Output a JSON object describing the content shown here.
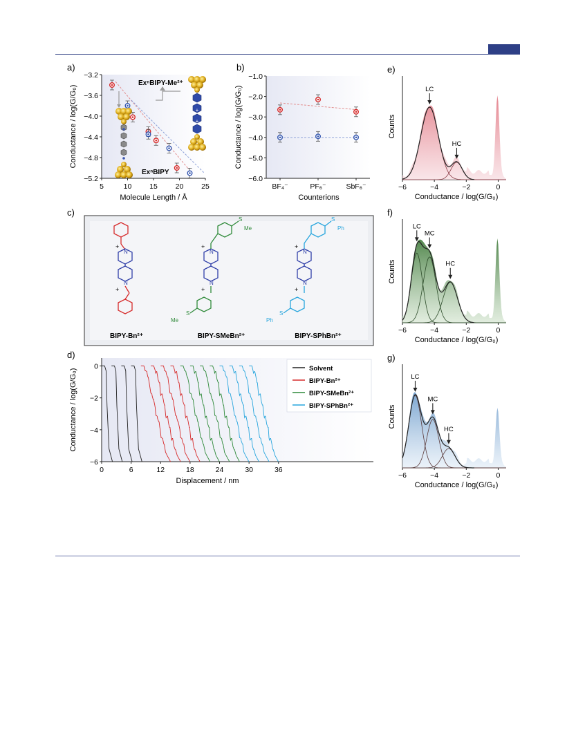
{
  "panels": {
    "a": {
      "label": "a)",
      "ylabel": "Conductance / log(G/G₀)",
      "xlabel": "Molecule Length / Å",
      "xticks": [
        "5",
        "10",
        "15",
        "20",
        "25"
      ],
      "yticks": [
        "−3.2",
        "−3.6",
        "−4.0",
        "−4.4",
        "−4.8",
        "−5.2"
      ],
      "annot_top": "ExⁿBIPY-Me²⁺",
      "annot_bottom": "ExⁿBIPY"
    },
    "b": {
      "label": "b)",
      "ylabel": "Conductance / log(G/G₀)",
      "xlabel": "Counterions",
      "xticks": [
        "BF₄⁻",
        "PF₆⁻",
        "SbF₆⁻"
      ],
      "yticks": [
        "−1.0",
        "−2.0",
        "−3.0",
        "−4.0",
        "−5.0",
        "−6.0"
      ]
    },
    "c": {
      "label": "c)",
      "mol1": "BIPY-Bn²⁺",
      "mol2": "BIPY-SMeBn²⁺",
      "mol3": "BIPY-SPhBn²⁺",
      "sub_me": "Me",
      "sub_ph": "Ph",
      "s": "S",
      "n": "N",
      "plus": "+"
    },
    "d": {
      "label": "d)",
      "ylabel": "Conductance / log(G/G₀)",
      "xlabel": "Displacement / nm",
      "xticks": [
        "0",
        "6",
        "12",
        "18",
        "24",
        "30",
        "36"
      ],
      "yticks": [
        "0",
        "−2",
        "−4",
        "−6"
      ],
      "legend": [
        "Solvent",
        "BIPY-Bn²⁺",
        "BIPY-SMeBn²⁺",
        "BIPY-SPhBn²⁺"
      ]
    },
    "e": {
      "label": "e)",
      "ylabel": "Counts",
      "xlabel": "Conductance / log(G/G₀)",
      "xticks": [
        "−6",
        "−4",
        "−2",
        "0"
      ],
      "peaks": [
        "LC",
        "HC"
      ]
    },
    "f": {
      "label": "f)",
      "ylabel": "Counts",
      "xlabel": "Conductance / log(G/G₀)",
      "xticks": [
        "−6",
        "−4",
        "−2",
        "0"
      ],
      "peaks": [
        "LC",
        "MC",
        "HC"
      ]
    },
    "g": {
      "label": "g)",
      "ylabel": "Counts",
      "xlabel": "Conductance / log(G/G₀)",
      "xticks": [
        "−6",
        "−4",
        "−2",
        "0"
      ],
      "peaks": [
        "LC",
        "MC",
        "HC"
      ]
    }
  },
  "colors": {
    "red": "#d62a2a",
    "blue": "#3557b0",
    "green": "#2f8a3a",
    "cyan": "#27a5dd",
    "black": "#222222",
    "header": "#2e3f86",
    "e_fill": "#e89aa2",
    "f_fill": "#6c9a63",
    "g_fill": "#9dbcdc"
  },
  "chart_data": [
    {
      "type": "scatter",
      "panel": "a",
      "xlabel": "Molecule Length / Å",
      "ylabel": "Conductance / log(G/G₀)",
      "xlim": [
        5,
        25
      ],
      "ylim": [
        -5.2,
        -3.2
      ],
      "series": [
        {
          "x": [
            7,
            11,
            14,
            15.5,
            19.5
          ],
          "y": [
            -3.4,
            -4.02,
            -4.3,
            -4.47,
            -5.0
          ]
        },
        {
          "x": [
            10,
            14,
            18,
            22
          ],
          "y": [
            -3.8,
            -4.35,
            -4.62,
            -5.1
          ]
        }
      ]
    },
    {
      "type": "scatter",
      "panel": "b",
      "xlabel": "Counterions",
      "ylabel": "Conductance / log(G/G₀)",
      "categories": [
        "BF₄⁻",
        "PF₆⁻",
        "SbF₆⁻"
      ],
      "ylim": [
        -6.0,
        -1.0
      ],
      "series": [
        {
          "values": [
            -2.65,
            -2.15,
            -2.75
          ]
        },
        {
          "values": [
            -4.0,
            -3.95,
            -4.0
          ]
        }
      ]
    },
    {
      "type": "line",
      "panel": "d",
      "xlabel": "Displacement / nm",
      "ylabel": "Conductance / log(G/G₀)",
      "xlim": [
        0,
        38
      ],
      "ylim": [
        -6,
        0.5
      ],
      "series": [
        {
          "name": "Solvent",
          "starts": [
            0,
            2,
            4,
            6
          ]
        },
        {
          "name": "BIPY-Bn²⁺",
          "starts": [
            8,
            10,
            12,
            14
          ]
        },
        {
          "name": "BIPY-SMeBn²⁺",
          "starts": [
            16,
            18,
            20,
            22
          ]
        },
        {
          "name": "BIPY-SPhBn²⁺",
          "starts": [
            24,
            26,
            28,
            30
          ]
        }
      ]
    },
    {
      "type": "area",
      "panel": "e",
      "xlabel": "Conductance / log(G/G₀)",
      "ylabel": "Counts",
      "xlim": [
        -6,
        0.5
      ],
      "peaks": [
        {
          "name": "LC",
          "x": -4.3
        },
        {
          "name": "HC",
          "x": -2.6
        }
      ]
    },
    {
      "type": "area",
      "panel": "f",
      "xlabel": "Conductance / log(G/G₀)",
      "ylabel": "Counts",
      "xlim": [
        -6,
        0.5
      ],
      "peaks": [
        {
          "name": "LC",
          "x": -5.1
        },
        {
          "name": "MC",
          "x": -4.3
        },
        {
          "name": "HC",
          "x": -3.0
        }
      ]
    },
    {
      "type": "area",
      "panel": "g",
      "xlabel": "Conductance / log(G/G₀)",
      "ylabel": "Counts",
      "xlim": [
        -6,
        0.5
      ],
      "peaks": [
        {
          "name": "LC",
          "x": -5.2
        },
        {
          "name": "MC",
          "x": -4.1
        },
        {
          "name": "HC",
          "x": -3.1
        }
      ]
    }
  ]
}
